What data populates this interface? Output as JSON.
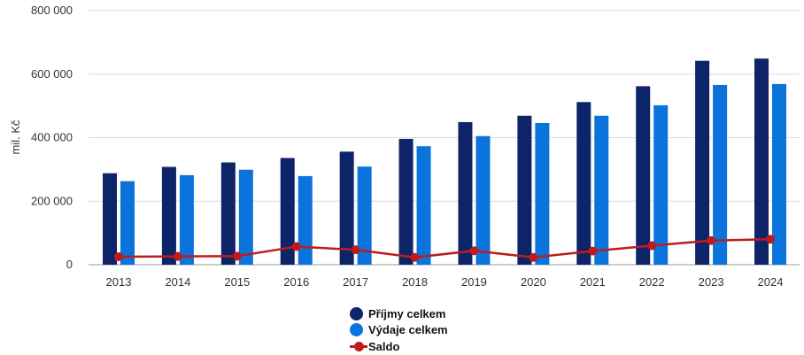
{
  "chart_data": {
    "type": "bar",
    "categories": [
      "2013",
      "2014",
      "2015",
      "2016",
      "2017",
      "2018",
      "2019",
      "2020",
      "2021",
      "2022",
      "2023",
      "2024"
    ],
    "series": [
      {
        "name": "Příjmy celkem",
        "kind": "bar",
        "color": "#0d2468",
        "values": [
          288000,
          308000,
          322000,
          336000,
          356000,
          396000,
          449000,
          469000,
          512000,
          562000,
          642000,
          649000
        ]
      },
      {
        "name": "Výdaje celkem",
        "kind": "bar",
        "color": "#0a74dc",
        "values": [
          263000,
          282000,
          299000,
          279000,
          309000,
          373000,
          405000,
          446000,
          469000,
          502000,
          566000,
          569000
        ]
      },
      {
        "name": "Saldo",
        "kind": "line",
        "color": "#c01b1b",
        "values": [
          25000,
          26000,
          27000,
          57000,
          47000,
          23000,
          44000,
          23000,
          43000,
          60000,
          76000,
          80000
        ]
      }
    ],
    "ylabel": "mil. Kč",
    "ylim": [
      0,
      800000
    ],
    "yticks": [
      0,
      200000,
      400000,
      600000,
      800000
    ],
    "ytick_labels": [
      "0",
      "200 000",
      "400 000",
      "600 000",
      "800 000"
    ],
    "grid": true,
    "legend_position": "bottom"
  },
  "legend": {
    "items": [
      {
        "label": "Příjmy celkem",
        "color": "#0d2468"
      },
      {
        "label": "Výdaje celkem",
        "color": "#0a74dc"
      },
      {
        "label": "Saldo",
        "color": "#c01b1b"
      }
    ]
  }
}
